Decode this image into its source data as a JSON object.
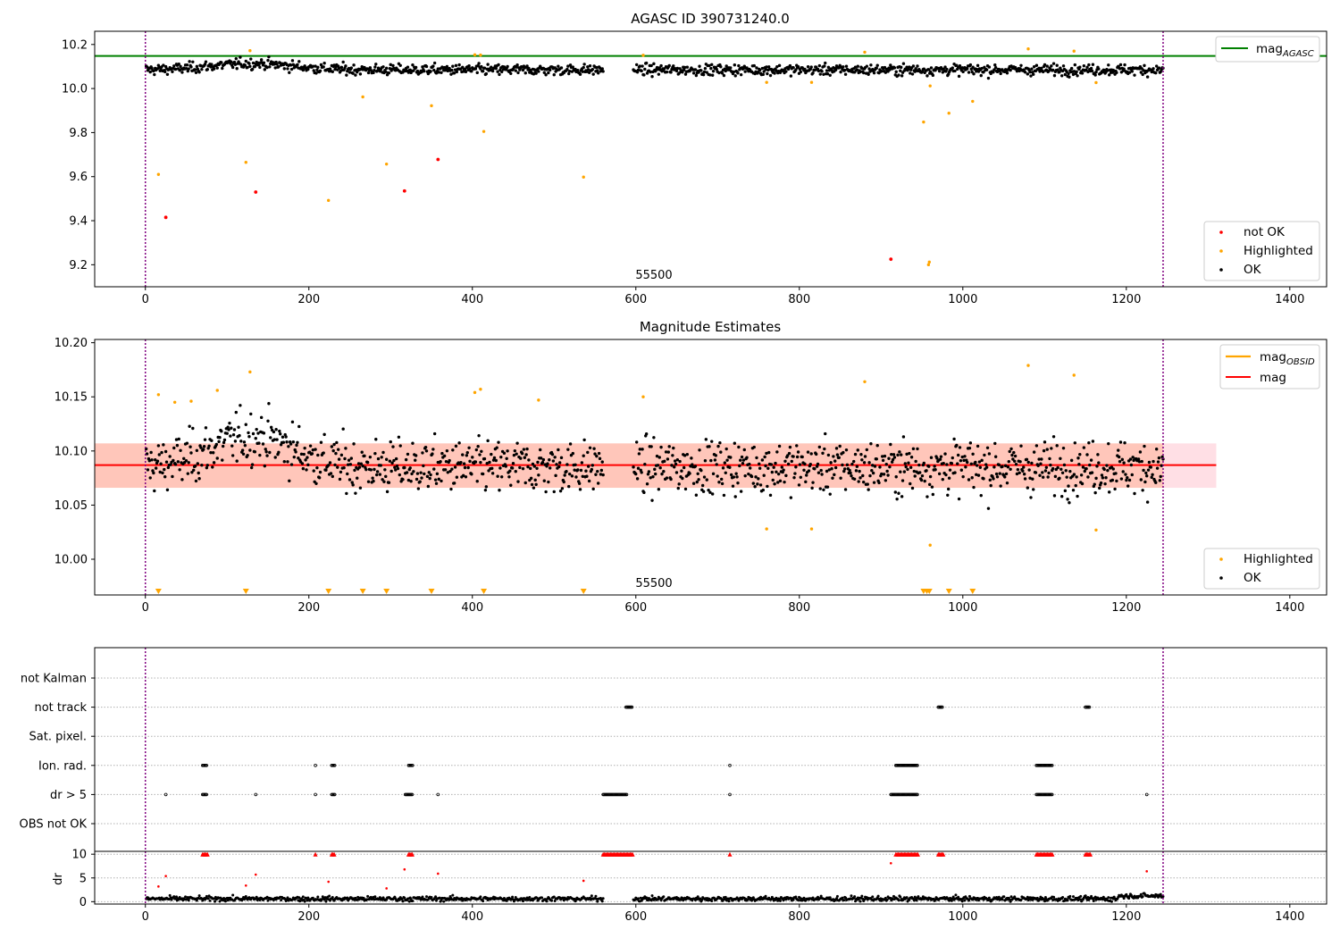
{
  "chart_data": [
    {
      "type": "scatter",
      "title": "AGASC ID 390731240.0",
      "annotation": "55500",
      "xlim": [
        -62,
        1445
      ],
      "ylim": [
        9.1,
        10.26
      ],
      "xticks": [
        0,
        200,
        400,
        600,
        800,
        1000,
        1200,
        1400
      ],
      "yticks": [
        9.2,
        9.4,
        9.6,
        9.8,
        10.0,
        10.2
      ],
      "vlines": [
        0,
        1245
      ],
      "legend_upper": "top-right",
      "legend_lower": "bottom-right",
      "mag_agasc": 10.148,
      "ok_series": {
        "segments": [
          {
            "x0": 1,
            "x1": 560,
            "n": 560
          },
          {
            "x0": 597,
            "x1": 1245,
            "n": 650
          }
        ],
        "mean": 10.085,
        "bump": [
          {
            "x": 130,
            "y": 10.113,
            "w": 70
          }
        ]
      },
      "series": [
        {
          "name": "mag_AGASC",
          "type": "hline",
          "color": "#008000"
        },
        {
          "name": "not OK",
          "color": "#ff0000",
          "points": [
            [
              25,
              9.415
            ],
            [
              135,
              9.53
            ],
            [
              317,
              9.535
            ],
            [
              358,
              9.678
            ],
            [
              912,
              9.225
            ]
          ]
        },
        {
          "name": "Highlighted",
          "color": "#ffa500",
          "points": [
            [
              16,
              9.61
            ],
            [
              123,
              9.665
            ],
            [
              128,
              10.172
            ],
            [
              224,
              9.492
            ],
            [
              266,
              9.962
            ],
            [
              295,
              9.657
            ],
            [
              350,
              9.922
            ],
            [
              403,
              10.153
            ],
            [
              410,
              10.152
            ],
            [
              414,
              9.805
            ],
            [
              536,
              9.598
            ],
            [
              609,
              10.151
            ],
            [
              760,
              10.028
            ],
            [
              815,
              10.028
            ],
            [
              880,
              10.165
            ],
            [
              952,
              9.848
            ],
            [
              958,
              9.2
            ],
            [
              959,
              9.212
            ],
            [
              960,
              10.012
            ],
            [
              983,
              9.888
            ],
            [
              1012,
              9.942
            ],
            [
              1080,
              10.18
            ],
            [
              1136,
              10.17
            ],
            [
              1163,
              10.027
            ]
          ]
        },
        {
          "name": "OK",
          "color": "#000000"
        }
      ]
    },
    {
      "type": "scatter",
      "title": "Magnitude Estimates",
      "annotation": "55500",
      "xlim": [
        -62,
        1445
      ],
      "ylim": [
        9.967,
        10.203
      ],
      "xticks": [
        0,
        200,
        400,
        600,
        800,
        1000,
        1200,
        1400
      ],
      "yticks": [
        10.0,
        10.05,
        10.1,
        10.15,
        10.2
      ],
      "vlines": [
        0,
        1245
      ],
      "legend_upper": "top-right",
      "legend_lower": "bottom-right",
      "mag": 10.087,
      "band_outer": [
        10.066,
        10.107
      ],
      "band_inner": [
        10.066,
        10.107
      ],
      "band_inner_x": [
        0,
        1245
      ],
      "series": [
        {
          "name": "mag_OBSID",
          "type": "line",
          "color": "#ffa500"
        },
        {
          "name": "mag",
          "type": "hline",
          "color": "#ff0000"
        },
        {
          "name": "Highlighted",
          "color": "#ffa500",
          "points": [
            [
              16,
              10.152
            ],
            [
              128,
              10.173
            ],
            [
              403,
              10.154
            ],
            [
              410,
              10.157
            ],
            [
              481,
              10.147
            ],
            [
              609,
              10.15
            ],
            [
              760,
              10.028
            ],
            [
              815,
              10.028
            ],
            [
              880,
              10.164
            ],
            [
              960,
              10.013
            ],
            [
              1080,
              10.179
            ],
            [
              1136,
              10.17
            ],
            [
              1163,
              10.027
            ],
            [
              36,
              10.145
            ],
            [
              56,
              10.146
            ],
            [
              88,
              10.156
            ]
          ]
        },
        {
          "name": "OK",
          "color": "#000000"
        }
      ],
      "out_of_range_markers": [
        16,
        123,
        224,
        266,
        295,
        350,
        414,
        536,
        952,
        956,
        959,
        983,
        1012
      ]
    },
    {
      "type": "scatter",
      "title": "",
      "xlim": [
        -62,
        1445
      ],
      "xticks": [
        0,
        200,
        400,
        600,
        800,
        1000,
        1200,
        1400
      ],
      "vlines": [
        0,
        1245
      ],
      "flag_labels": [
        "not Kalman",
        "not track",
        "Sat. pixel.",
        "Ion. rad.",
        "dr > 5",
        "OBS not OK"
      ],
      "flags": {
        "not track": [
          [
            588,
            596
          ],
          [
            970,
            976
          ],
          [
            1150,
            1156
          ]
        ],
        "Ion. rad.": [
          [
            70,
            76
          ],
          [
            208,
            208
          ],
          [
            228,
            232
          ],
          [
            322,
            327
          ],
          [
            715,
            715
          ],
          [
            918,
            945
          ],
          [
            1090,
            1110
          ]
        ],
        "dr > 5": [
          [
            25,
            25
          ],
          [
            70,
            76
          ],
          [
            135,
            135
          ],
          [
            208,
            208
          ],
          [
            228,
            232
          ],
          [
            318,
            327
          ],
          [
            358,
            358
          ],
          [
            560,
            590
          ],
          [
            715,
            715
          ],
          [
            912,
            945
          ],
          [
            1090,
            1110
          ],
          [
            1225,
            1225
          ]
        ]
      },
      "dr_ylabel": "dr",
      "dr_yticks": [
        0,
        5,
        10
      ],
      "dr_ylim": [
        -0.5,
        10.6
      ],
      "dr_clipped_x": [
        [
          70,
          76
        ],
        [
          208,
          208
        ],
        [
          228,
          232
        ],
        [
          322,
          327
        ],
        [
          560,
          597
        ],
        [
          715,
          715
        ],
        [
          918,
          945
        ],
        [
          970,
          976
        ],
        [
          1090,
          1110
        ],
        [
          1150,
          1156
        ]
      ],
      "dr_red_points": [
        [
          16,
          3.2
        ],
        [
          25,
          5.4
        ],
        [
          123,
          3.4
        ],
        [
          135,
          5.7
        ],
        [
          224,
          4.2
        ],
        [
          295,
          2.8
        ],
        [
          317,
          6.8
        ],
        [
          358,
          5.9
        ],
        [
          536,
          4.4
        ],
        [
          912,
          8.1
        ],
        [
          1225,
          6.4
        ]
      ]
    }
  ]
}
